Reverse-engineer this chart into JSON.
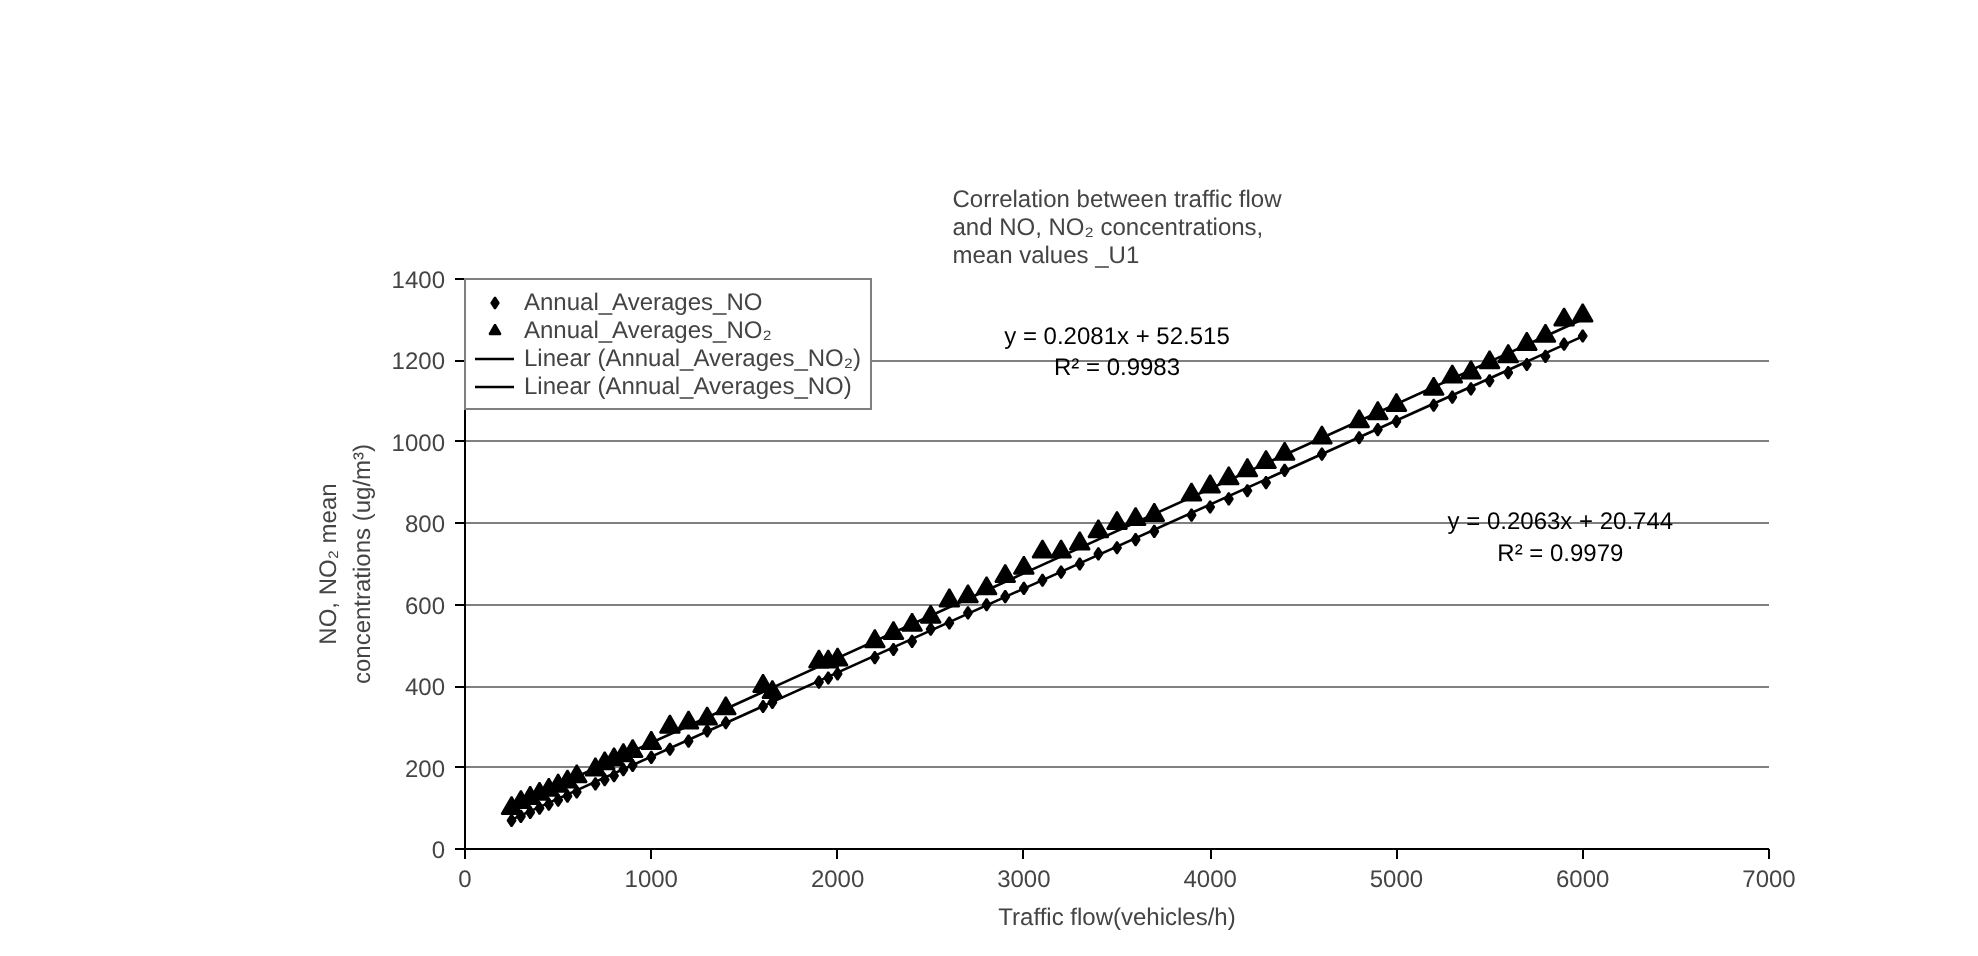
{
  "chart_data": {
    "type": "scatter",
    "title": "Correlation between traffic flow\nand NO, NO₂ concentrations,\nmean values _U1",
    "xlabel": "Traffic flow(vehicles/h)",
    "ylabel": "NO, NO₂ mean\nconcentrations (ug/m³)",
    "xlim": [
      0,
      7000
    ],
    "xticks": [
      0,
      1000,
      2000,
      3000,
      4000,
      5000,
      6000,
      7000
    ],
    "ylim": [
      0,
      1400
    ],
    "yticks": [
      0,
      200,
      400,
      600,
      800,
      1000,
      1200,
      1400
    ],
    "grid": "y",
    "legend": "top left",
    "series": [
      {
        "name": "Annual_Averages_NO",
        "marker": "diamond",
        "color": "#000000",
        "x": [
          250,
          300,
          350,
          400,
          450,
          500,
          550,
          600,
          700,
          750,
          800,
          850,
          900,
          1000,
          1100,
          1200,
          1300,
          1400,
          1600,
          1650,
          1900,
          1950,
          2000,
          2200,
          2300,
          2400,
          2500,
          2600,
          2700,
          2800,
          2900,
          3000,
          3100,
          3200,
          3300,
          3400,
          3500,
          3600,
          3700,
          3900,
          4000,
          4100,
          4200,
          4300,
          4400,
          4600,
          4800,
          4900,
          5000,
          5200,
          5300,
          5400,
          5500,
          5600,
          5700,
          5800,
          5900,
          6000
        ],
        "values": [
          70,
          80,
          90,
          100,
          110,
          120,
          130,
          140,
          160,
          170,
          180,
          195,
          205,
          225,
          245,
          265,
          290,
          310,
          350,
          360,
          410,
          420,
          430,
          470,
          490,
          510,
          540,
          555,
          580,
          600,
          620,
          640,
          660,
          680,
          700,
          725,
          740,
          760,
          780,
          820,
          840,
          860,
          880,
          900,
          930,
          970,
          1010,
          1030,
          1050,
          1090,
          1110,
          1130,
          1150,
          1170,
          1190,
          1210,
          1240,
          1260
        ]
      },
      {
        "name": "Annual_Averages_NO₂",
        "marker": "triangle",
        "color": "#000000",
        "x": [
          250,
          300,
          350,
          400,
          450,
          500,
          550,
          600,
          700,
          750,
          800,
          850,
          900,
          1000,
          1100,
          1200,
          1300,
          1400,
          1600,
          1650,
          1900,
          1950,
          2000,
          2200,
          2300,
          2400,
          2500,
          2600,
          2700,
          2800,
          2900,
          3000,
          3100,
          3200,
          3300,
          3400,
          3500,
          3600,
          3700,
          3900,
          4000,
          4100,
          4200,
          4300,
          4400,
          4600,
          4800,
          4900,
          5000,
          5200,
          5300,
          5400,
          5500,
          5600,
          5700,
          5800,
          5900,
          6000
        ],
        "values": [
          100,
          115,
          125,
          135,
          145,
          155,
          165,
          178,
          195,
          210,
          220,
          230,
          240,
          260,
          300,
          310,
          320,
          345,
          400,
          385,
          460,
          460,
          465,
          510,
          530,
          550,
          570,
          610,
          620,
          640,
          670,
          690,
          730,
          730,
          750,
          780,
          800,
          810,
          820,
          870,
          890,
          910,
          930,
          950,
          970,
          1010,
          1050,
          1070,
          1090,
          1130,
          1160,
          1170,
          1195,
          1210,
          1240,
          1260,
          1300,
          1310
        ]
      },
      {
        "name": "Linear (Annual_Averages_NO₂)",
        "type": "line",
        "color": "#000000",
        "x": [
          250,
          6000
        ],
        "values": [
          105,
          1301
        ]
      },
      {
        "name": "Linear (Annual_Averages_NO)",
        "type": "line",
        "color": "#000000",
        "x": [
          250,
          6000
        ],
        "values": [
          72,
          1259
        ]
      }
    ],
    "annotations": [
      "y = 0.2081x + 52.515",
      "R² = 0.9983",
      "y = 0.2063x + 20.744",
      "R² = 0.9979"
    ]
  }
}
